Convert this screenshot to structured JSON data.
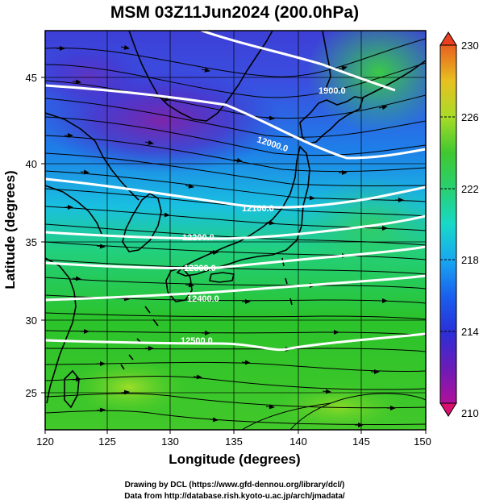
{
  "title": "MSM 03Z11Jun2024 (200.0hPa)",
  "xlabel": "Longitude (degrees)",
  "ylabel": "Latitude  (degrees)",
  "xticks": [
    "120",
    "125",
    "130",
    "135",
    "140",
    "145",
    "150"
  ],
  "yticks": [
    "25",
    "30",
    "35",
    "40",
    "45"
  ],
  "colorbar": {
    "ticks": [
      "230",
      "226",
      "222",
      "218",
      "214",
      "210"
    ],
    "colors": [
      "#d81060",
      "#8a1aa0",
      "#3a2fd0",
      "#1e7fe8",
      "#18c8e0",
      "#2ad07a",
      "#2bc02b",
      "#8ed82a",
      "#d8e020",
      "#f0a020",
      "#e84020"
    ]
  },
  "credits": [
    "Drawing by DCL (https://www.gfd-dennou.org/library/dcl/)",
    "Data from http://database.rish.kyoto-u.ac.jp/arch/jmadata/"
  ],
  "chart_data": {
    "type": "heatmap",
    "title": "MSM 03Z11Jun2024 (200.0hPa)",
    "xlabel": "Longitude (degrees)",
    "ylabel": "Latitude  (degrees)",
    "xlim": [
      120,
      150
    ],
    "ylim": [
      22.4,
      47.6
    ],
    "color_range": [
      210,
      230
    ],
    "color_ticks": [
      210,
      214,
      218,
      222,
      226,
      230
    ],
    "contours": [
      {
        "label": "11900.0",
        "lat_at_140E": 47.0
      },
      {
        "label": "12000.0",
        "lat_at_140E": 41.5
      },
      {
        "label": "12100.0",
        "lat_at_140E": 37.5
      },
      {
        "label": "12200.0",
        "lat_at_140E": 35.3
      },
      {
        "label": "12300.0",
        "lat_at_140E": 33.6
      },
      {
        "label": "12400.0",
        "lat_at_140E": 31.2
      },
      {
        "label": "12500.0",
        "lat_at_140E": 28.5
      }
    ],
    "labels_shown": [
      "1900.0",
      "12000.0",
      "12100.0",
      "12200.0",
      "12300.0",
      "12400.0",
      "12500.0"
    ]
  }
}
